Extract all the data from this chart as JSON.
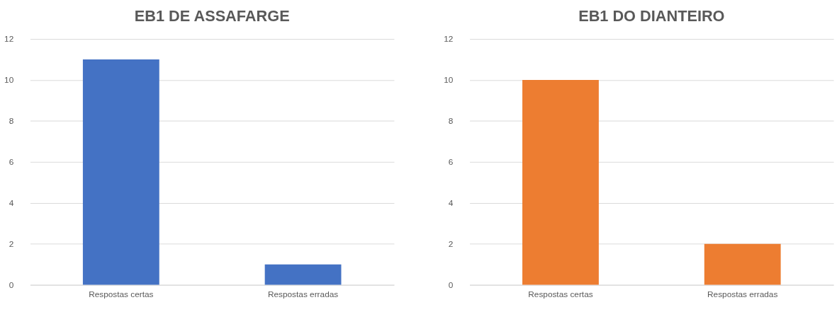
{
  "chart_data": [
    {
      "type": "bar",
      "title": "EB1 DE ASSAFARGE",
      "categories": [
        "Respostas certas",
        "Respostas erradas"
      ],
      "values": [
        11,
        1
      ],
      "color": "#4472c4",
      "ylim": [
        0,
        12
      ],
      "yticks": [
        0,
        2,
        4,
        6,
        8,
        10,
        12
      ],
      "grid": "y"
    },
    {
      "type": "bar",
      "title": "EB1 DO DIANTEIRO",
      "categories": [
        "Respostas certas",
        "Respostas erradas"
      ],
      "values": [
        10,
        2
      ],
      "color": "#ed7d31",
      "ylim": [
        0,
        12
      ],
      "yticks": [
        0,
        2,
        4,
        6,
        8,
        10,
        12
      ],
      "grid": "y"
    }
  ]
}
